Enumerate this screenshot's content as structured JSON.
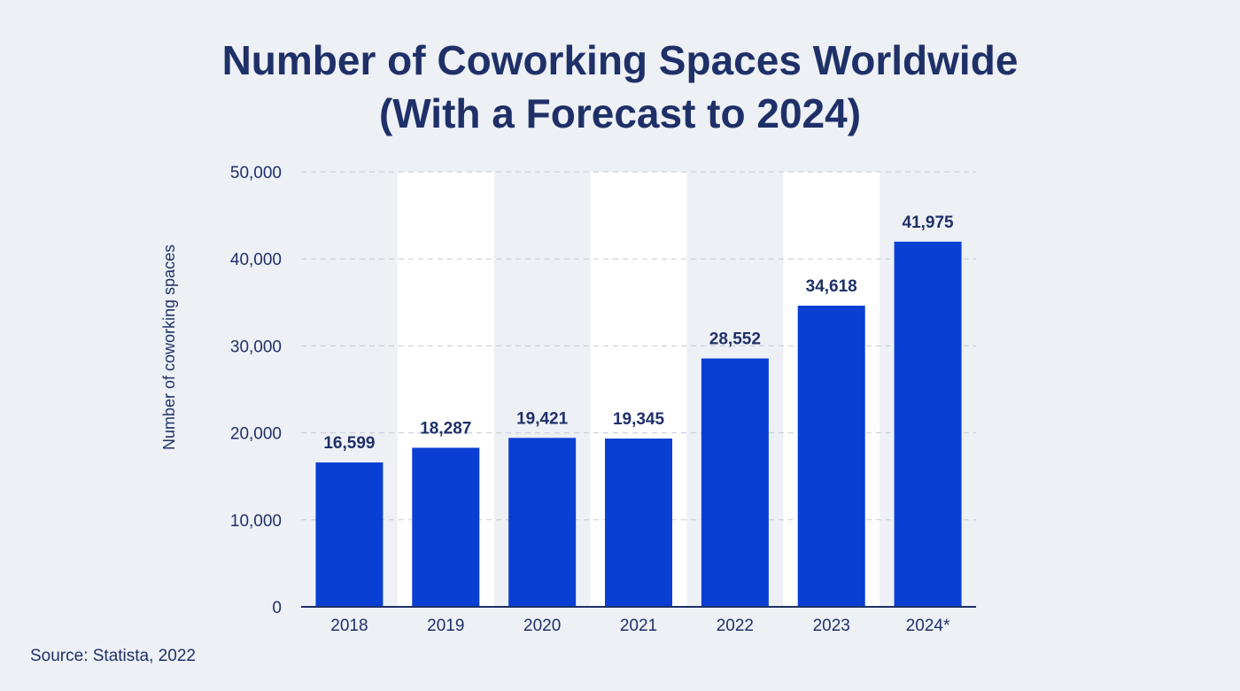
{
  "chart_data": {
    "type": "bar",
    "title_line1": "Number of Coworking Spaces Worldwide",
    "title_line2": "(With a Forecast to 2024)",
    "xlabel": "",
    "ylabel": "Number of coworking spaces",
    "categories": [
      "2018",
      "2019",
      "2020",
      "2021",
      "2022",
      "2023",
      "2024*"
    ],
    "values": [
      16599,
      18287,
      19421,
      19345,
      28552,
      34618,
      41975
    ],
    "value_labels": [
      "16,599",
      "18,287",
      "19,421",
      "19,345",
      "28,552",
      "34,618",
      "41,975"
    ],
    "ylim": [
      0,
      50000
    ],
    "yticks": [
      0,
      10000,
      20000,
      30000,
      40000,
      50000
    ],
    "ytick_labels": [
      "0",
      "10,000",
      "20,000",
      "30,000",
      "40,000",
      "50,000"
    ],
    "grid": true,
    "alternating_column_shading": true,
    "bar_color": "#0a3fd4",
    "shade_color": "#ffffff",
    "text_color": "#1f3068"
  },
  "source": "Source: Statista, 2022"
}
